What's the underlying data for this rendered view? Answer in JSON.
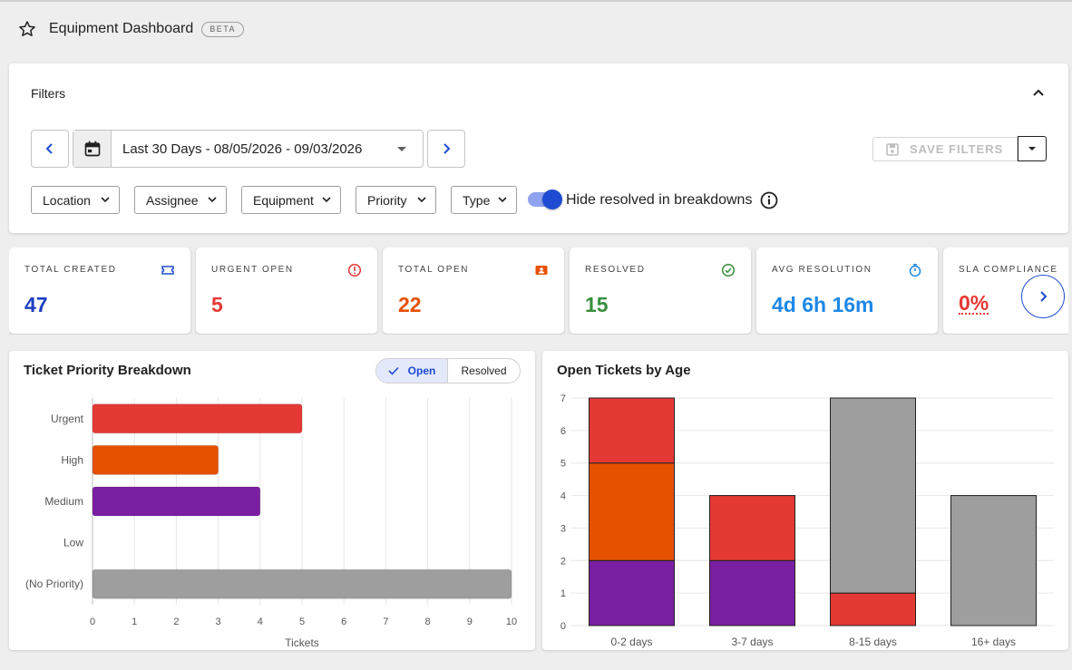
{
  "header": {
    "title": "Equipment Dashboard",
    "badge": "BETA"
  },
  "filters": {
    "title": "Filters",
    "date_range": "Last 30 Days - 08/05/2026 - 09/03/2026",
    "save_label": "SAVE FILTERS",
    "dropdowns": [
      "Location",
      "Assignee",
      "Equipment",
      "Priority",
      "Type"
    ],
    "toggle_label": "Hide resolved in breakdowns",
    "toggle_on": true
  },
  "stats": [
    {
      "label": "TOTAL CREATED",
      "value": "47",
      "color": "#1e3fc2",
      "icon": "ticket-icon"
    },
    {
      "label": "URGENT OPEN",
      "value": "5",
      "color": "#e53935",
      "icon": "alert-icon"
    },
    {
      "label": "TOTAL OPEN",
      "value": "22",
      "color": "#e65100",
      "icon": "badge-icon"
    },
    {
      "label": "RESOLVED",
      "value": "15",
      "color": "#388e3c",
      "icon": "check-circle-icon"
    },
    {
      "label": "AVG RESOLUTION",
      "value": "4d 6h 16m",
      "color": "#1e88e5",
      "icon": "timer-icon"
    },
    {
      "label": "SLA COMPLIANCE",
      "value": "0%",
      "color": "#e53935",
      "icon": ""
    }
  ],
  "priority_panel": {
    "title": "Ticket Priority Breakdown",
    "toggle_open": "Open",
    "toggle_resolved": "Resolved"
  },
  "age_panel": {
    "title": "Open Tickets by Age"
  },
  "chart_data": [
    {
      "type": "bar",
      "orientation": "horizontal",
      "categories": [
        "Urgent",
        "High",
        "Medium",
        "Low",
        "(No Priority)"
      ],
      "values": [
        5,
        3,
        4,
        0,
        10
      ],
      "colors": [
        "#e53935",
        "#e65100",
        "#7b1fa2",
        "#9e9e9e",
        "#9e9e9e"
      ],
      "xlabel": "Tickets",
      "xlim": [
        0,
        10
      ],
      "xticks": [
        0,
        1,
        2,
        3,
        4,
        5,
        6,
        7,
        8,
        9,
        10
      ],
      "grid": true
    },
    {
      "type": "bar",
      "stacked": true,
      "categories": [
        "0-2 days",
        "3-7 days",
        "8-15 days",
        "16+ days"
      ],
      "series": [
        {
          "values": [
            2,
            2,
            0,
            0
          ],
          "color": "#7b1fa2"
        },
        {
          "values": [
            3,
            0,
            0,
            0
          ],
          "color": "#e65100"
        },
        {
          "values": [
            2,
            2,
            1,
            0
          ],
          "color": "#e53935"
        },
        {
          "values": [
            0,
            0,
            6,
            4
          ],
          "color": "#9e9e9e"
        }
      ],
      "ylim": [
        0,
        7
      ],
      "yticks": [
        0,
        1,
        2,
        3,
        4,
        5,
        6,
        7
      ],
      "grid": true
    }
  ]
}
